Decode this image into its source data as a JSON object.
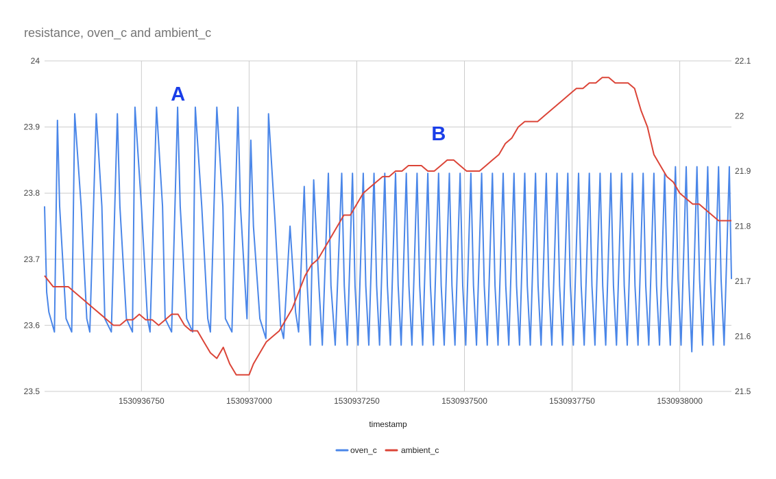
{
  "chart_data": {
    "type": "line",
    "title": "resistance, oven_c and ambient_c",
    "xlabel": "timestamp",
    "ylabel": "",
    "ylabel_right": "",
    "xlim": [
      1530936525,
      1530938120
    ],
    "x_ticks": [
      1530936750,
      1530937000,
      1530937250,
      1530937500,
      1530937750,
      1530938000
    ],
    "ylim_left": [
      23.5,
      24
    ],
    "y_ticks_left": [
      "23.5",
      "23.6",
      "23.7",
      "23.8",
      "23.9",
      "24"
    ],
    "ylim_right": [
      21.5,
      22.1
    ],
    "y_ticks_right": [
      "21.5",
      "21.6",
      "21.7",
      "21.8",
      "21.9",
      "22",
      "22.1"
    ],
    "grid": true,
    "legend_position": "bottom",
    "annotations": [
      {
        "text": "A",
        "x": 1530936835,
        "y": 23.94,
        "axis": "left"
      },
      {
        "text": "B",
        "x": 1530937440,
        "y": 23.88,
        "axis": "left"
      }
    ],
    "series": [
      {
        "name": "oven_c",
        "axis": "left",
        "color": "#4a86e8",
        "x": [
          1530936525,
          1530936530,
          1530936535,
          1530936548,
          1530936555,
          1530936560,
          1530936575,
          1530936588,
          1530936595,
          1530936610,
          1530936623,
          1530936630,
          1530936645,
          1530936658,
          1530936665,
          1530936680,
          1530936694,
          1530936700,
          1530936715,
          1530936729,
          1530936735,
          1530936750,
          1530936764,
          1530936770,
          1530936785,
          1530936799,
          1530936805,
          1530936820,
          1530936834,
          1530936840,
          1530936855,
          1530936869,
          1530936875,
          1530936890,
          1530936904,
          1530936910,
          1530936925,
          1530936939,
          1530936945,
          1530936960,
          1530936974,
          1530936980,
          1530936995,
          1530937004,
          1530937010,
          1530937025,
          1530937039,
          1530937045,
          1530937060,
          1530937073,
          1530937080,
          1530937095,
          1530937108,
          1530937115,
          1530937128,
          1530937135,
          1530937142,
          1530937150,
          1530937162,
          1530937170,
          1530937184,
          1530937190,
          1530937200,
          1530937215,
          1530937221,
          1530937228,
          1530937240,
          1530937246,
          1530937253,
          1530937265,
          1530937271,
          1530937278,
          1530937290,
          1530937296,
          1530937303,
          1530937315,
          1530937321,
          1530937328,
          1530937340,
          1530937346,
          1530937353,
          1530937365,
          1530937371,
          1530937378,
          1530937390,
          1530937396,
          1530937403,
          1530937415,
          1530937421,
          1530937428,
          1530937440,
          1530937446,
          1530937453,
          1530937465,
          1530937471,
          1530937478,
          1530937490,
          1530937496,
          1530937503,
          1530937515,
          1530937521,
          1530937528,
          1530937540,
          1530937546,
          1530937553,
          1530937565,
          1530937571,
          1530937578,
          1530937590,
          1530937596,
          1530937603,
          1530937615,
          1530937621,
          1530937628,
          1530937640,
          1530937646,
          1530937653,
          1530937665,
          1530937671,
          1530937678,
          1530937690,
          1530937696,
          1530937703,
          1530937715,
          1530937721,
          1530937728,
          1530937740,
          1530937746,
          1530937753,
          1530937765,
          1530937771,
          1530937778,
          1530937790,
          1530937796,
          1530937803,
          1530937815,
          1530937821,
          1530937828,
          1530937840,
          1530937846,
          1530937853,
          1530937865,
          1530937871,
          1530937878,
          1530937890,
          1530937896,
          1530937903,
          1530937915,
          1530937921,
          1530937928,
          1530937940,
          1530937946,
          1530937953,
          1530937965,
          1530937971,
          1530937978,
          1530937990,
          1530937996,
          1530938003,
          1530938015,
          1530938021,
          1530938028,
          1530938040,
          1530938046,
          1530938053,
          1530938065,
          1530938071,
          1530938078,
          1530938090,
          1530938096,
          1530938103,
          1530938115,
          1530938120
        ],
        "y": [
          23.78,
          23.65,
          23.62,
          23.59,
          23.91,
          23.78,
          23.61,
          23.59,
          23.92,
          23.78,
          23.61,
          23.59,
          23.92,
          23.78,
          23.61,
          23.59,
          23.92,
          23.78,
          23.61,
          23.59,
          23.93,
          23.78,
          23.61,
          23.59,
          23.93,
          23.78,
          23.61,
          23.59,
          23.93,
          23.78,
          23.61,
          23.59,
          23.93,
          23.78,
          23.61,
          23.59,
          23.93,
          23.78,
          23.61,
          23.59,
          23.93,
          23.78,
          23.61,
          23.88,
          23.75,
          23.61,
          23.58,
          23.92,
          23.76,
          23.6,
          23.58,
          23.75,
          23.62,
          23.59,
          23.81,
          23.66,
          23.57,
          23.82,
          23.66,
          23.57,
          23.83,
          23.66,
          23.57,
          23.83,
          23.66,
          23.57,
          23.83,
          23.66,
          23.57,
          23.83,
          23.66,
          23.57,
          23.83,
          23.66,
          23.57,
          23.83,
          23.66,
          23.57,
          23.83,
          23.66,
          23.57,
          23.83,
          23.66,
          23.57,
          23.83,
          23.66,
          23.57,
          23.83,
          23.66,
          23.57,
          23.83,
          23.66,
          23.57,
          23.83,
          23.66,
          23.57,
          23.83,
          23.66,
          23.57,
          23.83,
          23.66,
          23.57,
          23.83,
          23.66,
          23.57,
          23.83,
          23.66,
          23.57,
          23.83,
          23.66,
          23.57,
          23.83,
          23.66,
          23.57,
          23.83,
          23.66,
          23.57,
          23.83,
          23.66,
          23.57,
          23.83,
          23.66,
          23.57,
          23.83,
          23.66,
          23.57,
          23.83,
          23.66,
          23.57,
          23.83,
          23.66,
          23.57,
          23.83,
          23.66,
          23.57,
          23.83,
          23.66,
          23.57,
          23.83,
          23.66,
          23.57,
          23.83,
          23.66,
          23.57,
          23.83,
          23.66,
          23.57,
          23.83,
          23.66,
          23.57,
          23.83,
          23.66,
          23.57,
          23.83,
          23.66,
          23.57,
          23.84,
          23.67,
          23.57,
          23.84,
          23.67,
          23.56,
          23.84,
          23.67,
          23.57,
          23.84,
          23.67,
          23.57,
          23.84,
          23.67,
          23.57,
          23.84,
          23.67
        ]
      },
      {
        "name": "ambient_c",
        "axis": "right",
        "color": "#db4437",
        "x": [
          1530936525,
          1530936535,
          1530936545,
          1530936560,
          1530936570,
          1530936580,
          1530936595,
          1530936610,
          1530936625,
          1530936640,
          1530936655,
          1530936670,
          1530936685,
          1530936700,
          1530936715,
          1530936730,
          1530936745,
          1530936760,
          1530936775,
          1530936790,
          1530936805,
          1530936820,
          1530936835,
          1530936850,
          1530936865,
          1530936880,
          1530936895,
          1530936910,
          1530936925,
          1530936940,
          1530936955,
          1530936970,
          1530936985,
          1530937000,
          1530937010,
          1530937025,
          1530937040,
          1530937055,
          1530937070,
          1530937085,
          1530937100,
          1530937115,
          1530937130,
          1530937145,
          1530937160,
          1530937175,
          1530937190,
          1530937205,
          1530937220,
          1530937235,
          1530937250,
          1530937265,
          1530937280,
          1530937295,
          1530937310,
          1530937325,
          1530937340,
          1530937355,
          1530937370,
          1530937385,
          1530937400,
          1530937415,
          1530937430,
          1530937445,
          1530937460,
          1530937475,
          1530937490,
          1530937505,
          1530937520,
          1530937535,
          1530937550,
          1530937565,
          1530937580,
          1530937595,
          1530937610,
          1530937625,
          1530937640,
          1530937655,
          1530937670,
          1530937685,
          1530937700,
          1530937715,
          1530937730,
          1530937745,
          1530937760,
          1530937775,
          1530937790,
          1530937805,
          1530937820,
          1530937835,
          1530937850,
          1530937865,
          1530937880,
          1530937895,
          1530937910,
          1530937925,
          1530937940,
          1530937955,
          1530937970,
          1530937985,
          1530938000,
          1530938015,
          1530938030,
          1530938045,
          1530938060,
          1530938075,
          1530938090,
          1530938105,
          1530938120
        ],
        "y": [
          21.71,
          21.7,
          21.69,
          21.69,
          21.69,
          21.69,
          21.68,
          21.67,
          21.66,
          21.65,
          21.64,
          21.63,
          21.62,
          21.62,
          21.63,
          21.63,
          21.64,
          21.63,
          21.63,
          21.62,
          21.63,
          21.64,
          21.64,
          21.62,
          21.61,
          21.61,
          21.59,
          21.57,
          21.56,
          21.58,
          21.55,
          21.53,
          21.53,
          21.53,
          21.55,
          21.57,
          21.59,
          21.6,
          21.61,
          21.63,
          21.65,
          21.68,
          21.71,
          21.73,
          21.74,
          21.76,
          21.78,
          21.8,
          21.82,
          21.82,
          21.84,
          21.86,
          21.87,
          21.88,
          21.89,
          21.89,
          21.9,
          21.9,
          21.91,
          21.91,
          21.91,
          21.9,
          21.9,
          21.91,
          21.92,
          21.92,
          21.91,
          21.9,
          21.9,
          21.9,
          21.91,
          21.92,
          21.93,
          21.95,
          21.96,
          21.98,
          21.99,
          21.99,
          21.99,
          22.0,
          22.01,
          22.02,
          22.03,
          22.04,
          22.05,
          22.05,
          22.06,
          22.06,
          22.07,
          22.07,
          22.06,
          22.06,
          22.06,
          22.05,
          22.01,
          21.98,
          21.93,
          21.91,
          21.89,
          21.88,
          21.86,
          21.85,
          21.84,
          21.84,
          21.83,
          21.82,
          21.81,
          21.81,
          21.81
        ]
      }
    ]
  }
}
